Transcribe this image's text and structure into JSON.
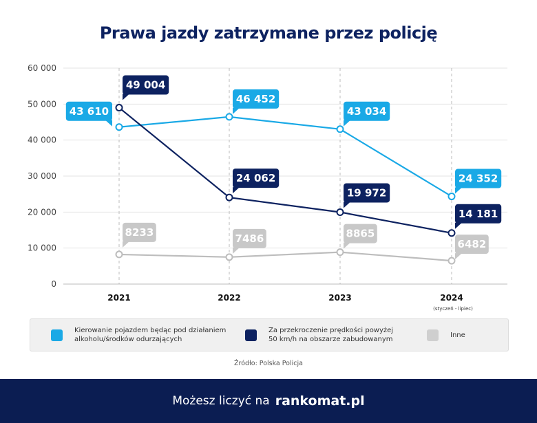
{
  "chart_data": {
    "type": "line",
    "title": "Prawa jazdy zatrzymane przez policję",
    "categories": [
      "2021",
      "2022",
      "2023",
      "2024"
    ],
    "category_notes": [
      "",
      "",
      "",
      "(styczeń - lipiec)"
    ],
    "ylim": [
      0,
      60000
    ],
    "yticks": [
      0,
      10000,
      20000,
      30000,
      40000,
      50000,
      60000
    ],
    "ytick_labels": [
      "0",
      "10 000",
      "20 000",
      "30 000",
      "40 000",
      "50 000",
      "60 000"
    ],
    "grid": true,
    "legend_placement": "bottom",
    "series": [
      {
        "name": "Kierowanie pojazdem będąc pod działaniem alkoholu/środków odurzających",
        "values": [
          43610,
          46452,
          43034,
          24352
        ],
        "labels": [
          "43 610",
          "46 452",
          "43 034",
          "24 352"
        ],
        "color": "#1aa9e6"
      },
      {
        "name": "Za przekroczenie prędkości powyżej 50 km/h na obszarze zabudowanym",
        "values": [
          49004,
          24062,
          19972,
          14181
        ],
        "labels": [
          "49 004",
          "24 062",
          "19 972",
          "14 181"
        ],
        "color": "#0d2260"
      },
      {
        "name": "Inne",
        "values": [
          8233,
          7486,
          8865,
          6482
        ],
        "labels": [
          "8233",
          "7486",
          "8865",
          "6482"
        ],
        "color": "#bdbdbd"
      }
    ]
  },
  "legend": {
    "items": [
      {
        "line1": "Kierowanie pojazdem będąc pod działaniem",
        "line2": "alkoholu/środków odurzających"
      },
      {
        "line1": "Za przekroczenie prędkości powyżej",
        "line2": "50 km/h na obszarze zabudowanym"
      },
      {
        "line1": "Inne",
        "line2": ""
      }
    ]
  },
  "source": "Źródło: Polska Policja",
  "footer": {
    "text": "Możesz liczyć na",
    "brand": "rankomat.pl"
  }
}
